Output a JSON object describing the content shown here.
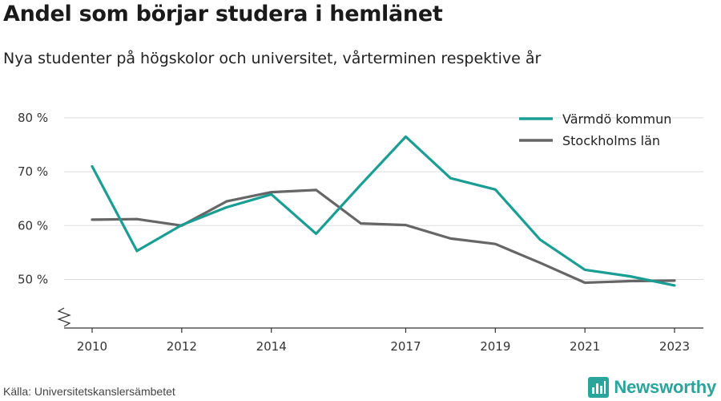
{
  "title": "Andel som börjar studera i hemlänet",
  "subtitle": "Nya studenter på högskolor och universitet, vårterminen respektive år",
  "source": "Källa: Universitetskanslersämbetet",
  "brand": {
    "name": "Newsworthy",
    "icon": "bar-chart-logo-icon",
    "color": "#2aa59b"
  },
  "chart_data": {
    "type": "line",
    "x": [
      2010,
      2011,
      2012,
      2013,
      2014,
      2015,
      2016,
      2017,
      2018,
      2019,
      2020,
      2021,
      2022,
      2023
    ],
    "x_ticks": [
      2010,
      2012,
      2014,
      2017,
      2019,
      2021,
      2023
    ],
    "y_ticks": [
      50,
      60,
      70,
      80
    ],
    "y_tick_suffix": " %",
    "ylim": [
      41,
      84
    ],
    "grid": true,
    "legend_position": "top-right",
    "series": [
      {
        "name": "Värmdö kommun",
        "color": "#1a9e94",
        "values": [
          71.0,
          55.3,
          60.1,
          63.4,
          65.8,
          58.5,
          67.6,
          76.5,
          68.8,
          66.7,
          57.4,
          51.8,
          50.6,
          48.9
        ]
      },
      {
        "name": "Stockholms län",
        "color": "#666666",
        "values": [
          61.1,
          61.2,
          60.0,
          64.5,
          66.2,
          66.6,
          60.4,
          60.1,
          57.6,
          56.6,
          53.1,
          49.4,
          49.7,
          49.8
        ]
      }
    ]
  }
}
